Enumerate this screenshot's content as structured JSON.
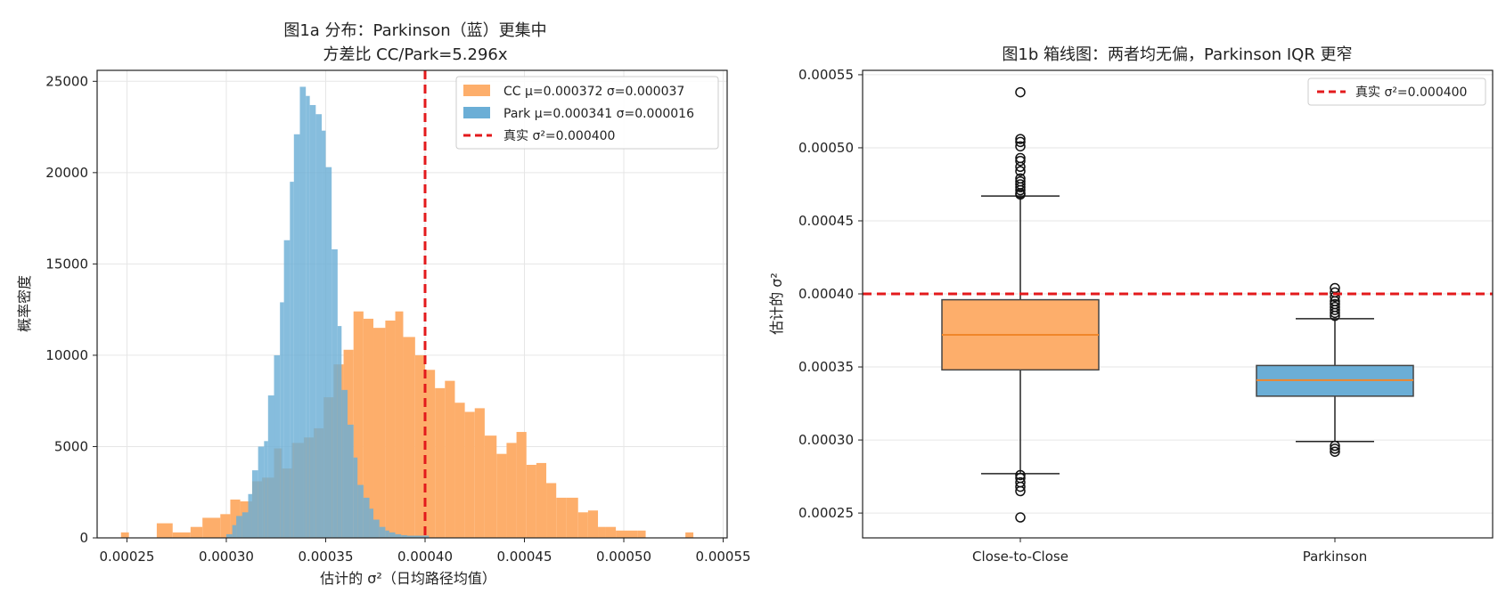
{
  "chart_data": [
    {
      "type": "histogram",
      "title_line1": "图1a  分布：Parkinson（蓝）更集中",
      "title_line2": "方差比 CC/Park=5.296x",
      "xlabel": "估计的 σ²（日均路径均值）",
      "ylabel": "概率密度",
      "xlim": [
        0.000235,
        0.000552
      ],
      "ylim": [
        0,
        25600
      ],
      "xticks": [
        0.00025,
        0.0003,
        0.00035,
        0.0004,
        0.00045,
        0.0005,
        0.00055
      ],
      "xtick_labels": [
        "0.00025",
        "0.00030",
        "0.00035",
        "0.00040",
        "0.00045",
        "0.00050",
        "0.00055"
      ],
      "yticks": [
        0,
        5000,
        10000,
        15000,
        20000,
        25000
      ],
      "ytick_labels": [
        "0",
        "5000",
        "10000",
        "15000",
        "20000",
        "25000"
      ],
      "grid": true,
      "legend_position": "top-right",
      "reference_line": {
        "x": 0.0004,
        "label": "真实 σ²=0.000400",
        "color": "#e31a1c"
      },
      "series": [
        {
          "name": "CC  μ=0.000372  σ=0.000037",
          "color": "#fdae6b",
          "bins": [
            [
              0.000247,
              0.000251,
              300
            ],
            [
              0.000265,
              0.000273,
              800
            ],
            [
              0.000273,
              0.000282,
              300
            ],
            [
              0.000282,
              0.000288,
              600
            ],
            [
              0.000288,
              0.000297,
              1100
            ],
            [
              0.000297,
              0.000302,
              1300
            ],
            [
              0.000302,
              0.000307,
              2100
            ],
            [
              0.000307,
              0.000313,
              2000
            ],
            [
              0.000313,
              0.000318,
              3100
            ],
            [
              0.000318,
              0.000324,
              3300
            ],
            [
              0.000324,
              0.000328,
              4900
            ],
            [
              0.000328,
              0.000333,
              3800
            ],
            [
              0.000333,
              0.000339,
              5200
            ],
            [
              0.000339,
              0.000344,
              5500
            ],
            [
              0.000344,
              0.000349,
              6000
            ],
            [
              0.000349,
              0.000354,
              7700
            ],
            [
              0.000354,
              0.000359,
              9500
            ],
            [
              0.000359,
              0.000364,
              10300
            ],
            [
              0.000364,
              0.000369,
              12400
            ],
            [
              0.000369,
              0.000374,
              12000
            ],
            [
              0.000374,
              0.00038,
              11500
            ],
            [
              0.00038,
              0.000385,
              11900
            ],
            [
              0.000385,
              0.000389,
              12400
            ],
            [
              0.000389,
              0.000395,
              11000
            ],
            [
              0.000395,
              0.0004,
              10000
            ],
            [
              0.0004,
              0.000405,
              9200
            ],
            [
              0.000405,
              0.00041,
              8200
            ],
            [
              0.00041,
              0.000415,
              8600
            ],
            [
              0.000415,
              0.00042,
              7400
            ],
            [
              0.00042,
              0.000425,
              6900
            ],
            [
              0.000425,
              0.00043,
              7100
            ],
            [
              0.00043,
              0.000436,
              5600
            ],
            [
              0.000436,
              0.000441,
              4600
            ],
            [
              0.000441,
              0.000446,
              5200
            ],
            [
              0.000446,
              0.000451,
              5800
            ],
            [
              0.000451,
              0.000456,
              4000
            ],
            [
              0.000456,
              0.000461,
              4100
            ],
            [
              0.000461,
              0.000466,
              3000
            ],
            [
              0.000466,
              0.000471,
              2200
            ],
            [
              0.000471,
              0.000477,
              2200
            ],
            [
              0.000477,
              0.000482,
              1400
            ],
            [
              0.000482,
              0.000487,
              1500
            ],
            [
              0.000487,
              0.000491,
              600
            ],
            [
              0.000491,
              0.000496,
              600
            ],
            [
              0.000496,
              0.000502,
              400
            ],
            [
              0.000502,
              0.000507,
              400
            ],
            [
              0.000507,
              0.000511,
              400
            ],
            [
              0.000531,
              0.000535,
              300
            ]
          ]
        },
        {
          "name": "Park  μ=0.000341  σ=0.000016",
          "color": "#6baed6",
          "bins": [
            [
              0.0003,
              0.000303,
              200
            ],
            [
              0.000303,
              0.000305,
              700
            ],
            [
              0.000305,
              0.000308,
              1200
            ],
            [
              0.000308,
              0.000311,
              1400
            ],
            [
              0.000311,
              0.000313,
              2400
            ],
            [
              0.000313,
              0.000316,
              3700
            ],
            [
              0.000316,
              0.000319,
              5000
            ],
            [
              0.000319,
              0.000321,
              5300
            ],
            [
              0.000321,
              0.000324,
              7800
            ],
            [
              0.000324,
              0.000327,
              10000
            ],
            [
              0.000327,
              0.000329,
              12900
            ],
            [
              0.000329,
              0.000332,
              16300
            ],
            [
              0.000332,
              0.000334,
              19500
            ],
            [
              0.000334,
              0.000337,
              22100
            ],
            [
              0.000337,
              0.00034,
              24700
            ],
            [
              0.00034,
              0.000342,
              24200
            ],
            [
              0.000342,
              0.000345,
              23700
            ],
            [
              0.000345,
              0.000348,
              23200
            ],
            [
              0.000348,
              0.00035,
              22300
            ],
            [
              0.00035,
              0.000353,
              20300
            ],
            [
              0.000353,
              0.000356,
              15800
            ],
            [
              0.000356,
              0.000358,
              11600
            ],
            [
              0.000358,
              0.000361,
              8100
            ],
            [
              0.000361,
              0.000364,
              6200
            ],
            [
              0.000364,
              0.000366,
              4400
            ],
            [
              0.000366,
              0.000369,
              2900
            ],
            [
              0.000369,
              0.000372,
              2200
            ],
            [
              0.000372,
              0.000374,
              1600
            ],
            [
              0.000374,
              0.000377,
              1000
            ],
            [
              0.000377,
              0.00038,
              600
            ],
            [
              0.00038,
              0.000382,
              400
            ],
            [
              0.000382,
              0.000385,
              300
            ],
            [
              0.000385,
              0.000388,
              200
            ],
            [
              0.000388,
              0.000391,
              150
            ],
            [
              0.000391,
              0.000402,
              120
            ]
          ]
        }
      ]
    },
    {
      "type": "box",
      "title": "图1b  箱线图：两者均无偏，Parkinson IQR 更窄",
      "ylabel": "估计的 σ²",
      "ylim": [
        0.000233,
        0.000553
      ],
      "yticks": [
        0.00025,
        0.0003,
        0.00035,
        0.0004,
        0.00045,
        0.0005,
        0.00055
      ],
      "ytick_labels": [
        "0.00025",
        "0.00030",
        "0.00035",
        "0.00040",
        "0.00045",
        "0.00050",
        "0.00055"
      ],
      "grid": true,
      "legend_position": "top-right",
      "reference_line": {
        "y": 0.0004,
        "label": "真实 σ²=0.000400",
        "color": "#e31a1c"
      },
      "categories": [
        "Close-to-Close",
        "Parkinson"
      ],
      "boxes": [
        {
          "name": "Close-to-Close",
          "color": "#fdae6b",
          "whislo": 0.000277,
          "q1": 0.000348,
          "med": 0.000372,
          "q3": 0.000396,
          "whishi": 0.000467,
          "fliers": [
            0.000538,
            0.000506,
            0.000504,
            0.000501,
            0.000493,
            0.000491,
            0.000487,
            0.000484,
            0.000479,
            0.000477,
            0.000475,
            0.000473,
            0.000471,
            0.000469,
            0.000468,
            0.000276,
            0.000274,
            0.000271,
            0.000268,
            0.000265,
            0.000247
          ]
        },
        {
          "name": "Parkinson",
          "color": "#6baed6",
          "whislo": 0.000299,
          "q1": 0.00033,
          "med": 0.000341,
          "q3": 0.000351,
          "whishi": 0.000383,
          "fliers": [
            0.000404,
            0.000401,
            0.000398,
            0.000395,
            0.000393,
            0.000391,
            0.000389,
            0.000387,
            0.000385,
            0.000296,
            0.000294,
            0.000292
          ]
        }
      ]
    }
  ]
}
